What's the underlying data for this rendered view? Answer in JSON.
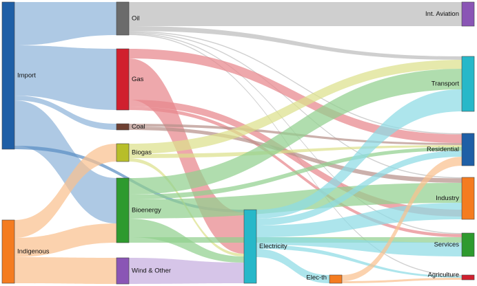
{
  "diagram": {
    "type": "sankey",
    "nodes": [
      {
        "id": "import",
        "label": "Import",
        "color": "#1f5fa6"
      },
      {
        "id": "indigenous",
        "label": "Indigenous",
        "color": "#f47c20"
      },
      {
        "id": "oil",
        "label": "Oil",
        "color": "#6b6b6b"
      },
      {
        "id": "gas",
        "label": "Gas",
        "color": "#d0202e"
      },
      {
        "id": "coal",
        "label": "Coal",
        "color": "#6e4032"
      },
      {
        "id": "biogas",
        "label": "Biogas",
        "color": "#b7be2a"
      },
      {
        "id": "bioenergy",
        "label": "Bioenergy",
        "color": "#2e9a2e"
      },
      {
        "id": "wind",
        "label": "Wind & Other",
        "color": "#8a55b5"
      },
      {
        "id": "electricity",
        "label": "Electricity",
        "color": "#27b8c9"
      },
      {
        "id": "elec_th",
        "label": "Elec-th",
        "color": "#f47c20"
      },
      {
        "id": "aviation",
        "label": "Int. Aviation",
        "color": "#8a55b5"
      },
      {
        "id": "transport",
        "label": "Transport",
        "color": "#27b8c9"
      },
      {
        "id": "residential",
        "label": "Residential",
        "color": "#1f5fa6"
      },
      {
        "id": "industry",
        "label": "Industry",
        "color": "#f47c20"
      },
      {
        "id": "services",
        "label": "Services",
        "color": "#2e9a2e"
      },
      {
        "id": "agriculture",
        "label": "Agriculture",
        "color": "#d0202e"
      }
    ],
    "links": [
      {
        "source": "import",
        "target": "oil",
        "color": "#8fb4d9"
      },
      {
        "source": "import",
        "target": "gas",
        "color": "#8fb4d9"
      },
      {
        "source": "import",
        "target": "coal",
        "color": "#8fb4d9"
      },
      {
        "source": "import",
        "target": "bioenergy",
        "color": "#8fb4d9"
      },
      {
        "source": "import",
        "target": "electricity",
        "color": "#5b8fc4"
      },
      {
        "source": "indigenous",
        "target": "biogas",
        "color": "#f9c08f"
      },
      {
        "source": "indigenous",
        "target": "bioenergy",
        "color": "#f9c08f"
      },
      {
        "source": "indigenous",
        "target": "wind",
        "color": "#f9c08f"
      },
      {
        "source": "oil",
        "target": "aviation",
        "color": "#bdbdbd"
      },
      {
        "source": "oil",
        "target": "transport",
        "color": "#bdbdbd"
      },
      {
        "source": "oil",
        "target": "residential",
        "color": "#bdbdbd"
      },
      {
        "source": "oil",
        "target": "industry",
        "color": "#bdbdbd"
      },
      {
        "source": "oil",
        "target": "services",
        "color": "#bdbdbd"
      },
      {
        "source": "oil",
        "target": "agriculture",
        "color": "#bdbdbd"
      },
      {
        "source": "gas",
        "target": "residential",
        "color": "#e8868c"
      },
      {
        "source": "gas",
        "target": "electricity",
        "color": "#e8868c"
      },
      {
        "source": "gas",
        "target": "industry",
        "color": "#e8868c"
      },
      {
        "source": "gas",
        "target": "services",
        "color": "#e8868c"
      },
      {
        "source": "coal",
        "target": "residential",
        "color": "#b7928a"
      },
      {
        "source": "coal",
        "target": "industry",
        "color": "#b7928a"
      },
      {
        "source": "biogas",
        "target": "transport",
        "color": "#dde08c"
      },
      {
        "source": "biogas",
        "target": "residential",
        "color": "#dde08c"
      },
      {
        "source": "biogas",
        "target": "electricity",
        "color": "#dde08c"
      },
      {
        "source": "bioenergy",
        "target": "transport",
        "color": "#92d08f"
      },
      {
        "source": "bioenergy",
        "target": "residential",
        "color": "#92d08f"
      },
      {
        "source": "bioenergy",
        "target": "industry",
        "color": "#92d08f"
      },
      {
        "source": "bioenergy",
        "target": "electricity",
        "color": "#92d08f"
      },
      {
        "source": "bioenergy",
        "target": "services",
        "color": "#92d08f"
      },
      {
        "source": "wind",
        "target": "electricity",
        "color": "#c6aedf"
      },
      {
        "source": "electricity",
        "target": "transport",
        "color": "#8edbe4"
      },
      {
        "source": "electricity",
        "target": "residential",
        "color": "#8edbe4"
      },
      {
        "source": "electricity",
        "target": "industry",
        "color": "#8edbe4"
      },
      {
        "source": "electricity",
        "target": "services",
        "color": "#8edbe4"
      },
      {
        "source": "electricity",
        "target": "agriculture",
        "color": "#8edbe4"
      },
      {
        "source": "electricity",
        "target": "elec_th",
        "color": "#8edbe4"
      },
      {
        "source": "elec_th",
        "target": "residential",
        "color": "#f9c08f"
      },
      {
        "source": "elec_th",
        "target": "agriculture",
        "color": "#f9c08f"
      }
    ]
  }
}
